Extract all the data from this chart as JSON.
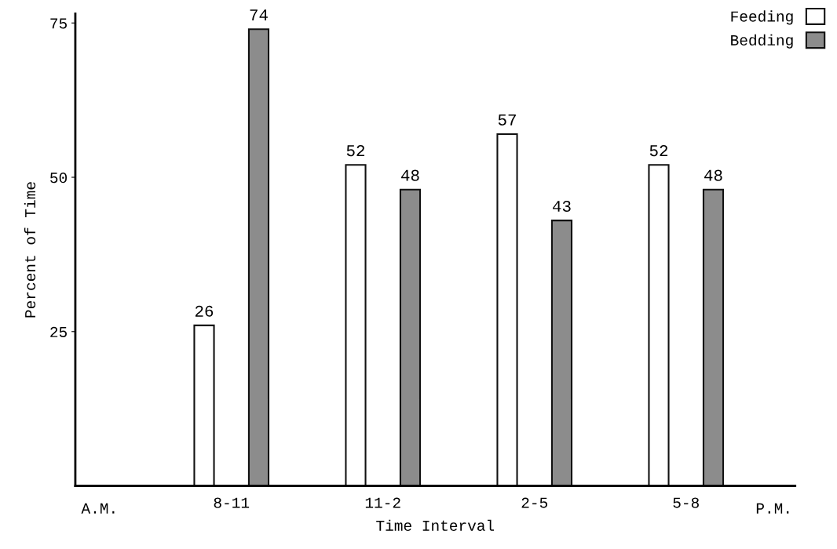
{
  "chart_data": {
    "type": "bar",
    "xlabel": "Time Interval",
    "ylabel": "Percent of Time",
    "categories": [
      "8-11",
      "11-2",
      "2-5",
      "5-8"
    ],
    "series": [
      {
        "name": "Feeding",
        "color": "#ffffff",
        "values": [
          26,
          52,
          57,
          52
        ]
      },
      {
        "name": "Bedding",
        "color": "#8c8c8c",
        "values": [
          74,
          48,
          43,
          48
        ]
      }
    ],
    "ylim": [
      0,
      76.5
    ],
    "yticks": [
      25,
      50,
      75
    ],
    "data_labels": true,
    "legend": "top right",
    "grid": false,
    "annotations": [
      "A.M.",
      "P.M."
    ]
  }
}
